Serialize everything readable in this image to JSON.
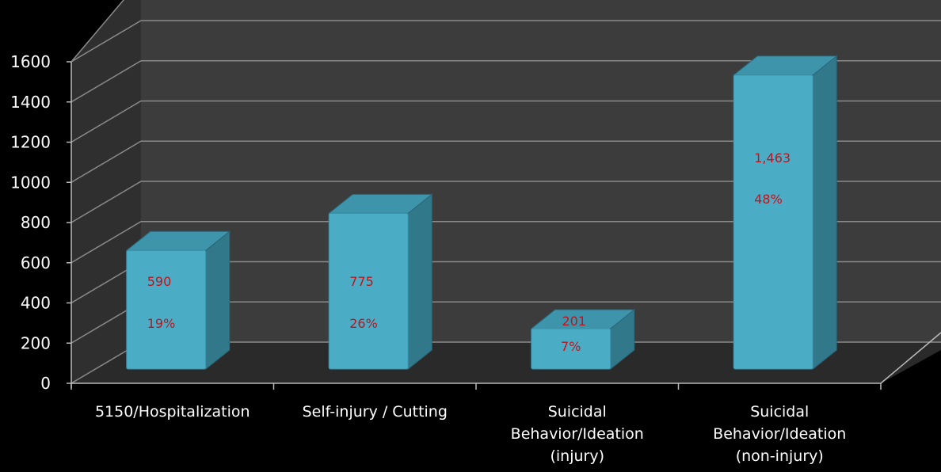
{
  "chart_data": {
    "type": "bar",
    "title": "",
    "xlabel": "",
    "ylabel": "",
    "ylim": [
      0,
      1600
    ],
    "yticks": [
      0,
      200,
      400,
      600,
      800,
      1000,
      1200,
      1400,
      1600
    ],
    "categories": [
      "5150/Hospitalization",
      "Self-injury / Cutting",
      "Suicidal Behavior/Ideation (injury)",
      "Suicidal Behavior/Ideation (non-injury)"
    ],
    "category_lines": [
      [
        "5150/Hospitalization"
      ],
      [
        "Self-injury / Cutting"
      ],
      [
        "Suicidal",
        "Behavior/Ideation",
        "(injury)"
      ],
      [
        "Suicidal",
        "Behavior/Ideation",
        "(non-injury)"
      ]
    ],
    "values": [
      590,
      775,
      201,
      1463
    ],
    "value_labels": [
      "590",
      "775",
      "201",
      "1,463"
    ],
    "percent_labels": [
      "19%",
      "26%",
      "7%",
      "48%"
    ],
    "grid": true,
    "legend": "none",
    "style": "3d-column",
    "colors": {
      "background": "#000000",
      "wall": "#3c3c3c",
      "floor": "#2a2a2a",
      "gridline": "#8a8a8a",
      "bar_front": "#4bacc6",
      "bar_side": "#31788b",
      "bar_top": "#3d94ab",
      "data_label": "#c0141c",
      "text": "#ffffff"
    }
  }
}
